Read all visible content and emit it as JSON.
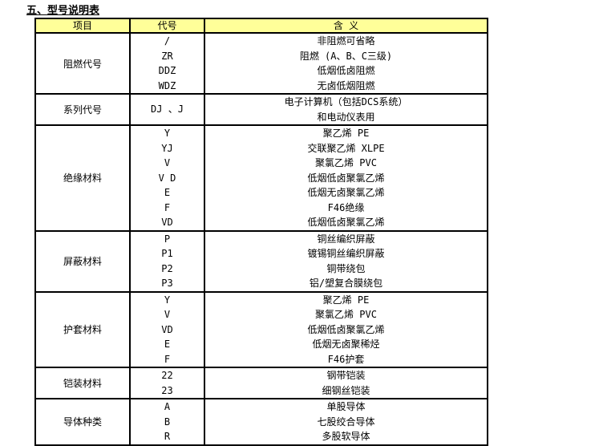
{
  "title": "五、型号说明表",
  "colors": {
    "header_bg": "#FFFF99",
    "border": "#000000",
    "text": "#000000",
    "page_bg": "#FFFFFF"
  },
  "table": {
    "headers": [
      "项目",
      "代号",
      "含 义"
    ],
    "sections": [
      {
        "item": "阻燃代号",
        "codes": [
          "/",
          "ZR",
          "DDZ",
          "WDZ"
        ],
        "meanings": [
          "非阻燃可省略",
          "阻燃 (A、B、C三级)",
          "低烟低卤阻燃",
          "无卤低烟阻燃"
        ]
      },
      {
        "item": "系列代号",
        "codes": [
          "DJ 、J"
        ],
        "meanings": [
          "电子计算机（包括DCS系统）",
          "和电动仪表用"
        ]
      },
      {
        "item": "绝缘材料",
        "codes": [
          "Y",
          "YJ",
          "V",
          "V D",
          "E",
          "F",
          "VD"
        ],
        "meanings": [
          "聚乙烯 PE",
          "交联聚乙烯 XLPE",
          "聚氯乙烯 PVC",
          "低烟低卤聚氯乙烯",
          "低烟无卤聚氯乙烯",
          "F46绝缘",
          "低烟低卤聚氯乙烯"
        ]
      },
      {
        "item": "屏蔽材料",
        "codes": [
          "P",
          "P1",
          "P2",
          "P3"
        ],
        "meanings": [
          "铜丝编织屏蔽",
          "镀锡铜丝编织屏蔽",
          "铜带绕包",
          "铝/塑复合膜绕包"
        ]
      },
      {
        "item": "护套材料",
        "codes": [
          "Y",
          "V",
          "VD",
          "E",
          "F"
        ],
        "meanings": [
          "聚乙烯 PE",
          "聚氯乙烯 PVC",
          "低烟低卤聚氯乙烯",
          "低烟无卤聚稀烃",
          "F46护套"
        ]
      },
      {
        "item": "铠装材料",
        "codes": [
          "22",
          "23"
        ],
        "meanings": [
          "钢带铠装",
          "细钢丝铠装"
        ]
      },
      {
        "item": "导体种类",
        "codes": [
          "A",
          "B",
          "R"
        ],
        "meanings": [
          "单股导体",
          "七股绞合导体",
          "多股软导体"
        ]
      }
    ]
  }
}
